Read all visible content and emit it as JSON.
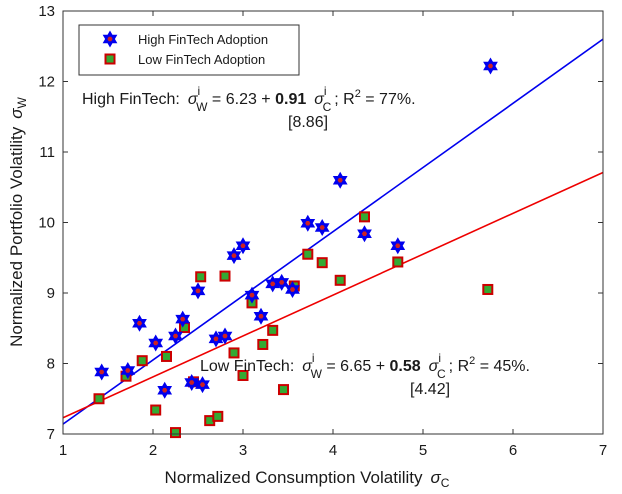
{
  "chart_data": {
    "type": "scatter",
    "title": "",
    "xlabel": "Normalized Consumption Volatility",
    "xlabel_symbol": "σ",
    "xlabel_sub": "C",
    "ylabel": "Normalized Portfolio Volatility",
    "ylabel_symbol": "σ",
    "ylabel_sub": "W",
    "xlim": [
      1,
      7
    ],
    "ylim": [
      7,
      13
    ],
    "xticks": [
      "1",
      "2",
      "3",
      "4",
      "5",
      "6",
      "7"
    ],
    "yticks": [
      "7",
      "8",
      "9",
      "10",
      "11",
      "12",
      "13"
    ],
    "grid": false,
    "legend_position": "top-left",
    "series": [
      {
        "name": "High FinTech Adoption",
        "marker": "hexagram",
        "color": "#0000ee",
        "fill": "#cc2222",
        "points": [
          [
            1.43,
            7.88
          ],
          [
            1.72,
            7.9
          ],
          [
            1.85,
            8.57
          ],
          [
            2.03,
            8.29
          ],
          [
            2.13,
            7.62
          ],
          [
            2.25,
            8.39
          ],
          [
            2.33,
            8.63
          ],
          [
            2.43,
            7.73
          ],
          [
            2.5,
            9.03
          ],
          [
            2.55,
            7.7
          ],
          [
            2.7,
            8.35
          ],
          [
            2.8,
            8.39
          ],
          [
            2.9,
            9.53
          ],
          [
            3.0,
            9.67
          ],
          [
            3.1,
            8.97
          ],
          [
            3.2,
            8.67
          ],
          [
            3.33,
            9.13
          ],
          [
            3.43,
            9.15
          ],
          [
            3.55,
            9.05
          ],
          [
            3.72,
            9.99
          ],
          [
            3.88,
            9.93
          ],
          [
            4.08,
            10.6
          ],
          [
            4.35,
            9.84
          ],
          [
            4.72,
            9.67
          ],
          [
            5.75,
            12.22
          ]
        ]
      },
      {
        "name": "Low FinTech Adoption",
        "marker": "square",
        "color": "#cc0000",
        "fill": "#33aa33",
        "points": [
          [
            1.4,
            7.5
          ],
          [
            1.7,
            7.82
          ],
          [
            1.88,
            8.04
          ],
          [
            2.03,
            7.34
          ],
          [
            2.15,
            8.1
          ],
          [
            2.25,
            7.02
          ],
          [
            2.35,
            8.51
          ],
          [
            2.45,
            7.74
          ],
          [
            2.53,
            9.23
          ],
          [
            2.63,
            7.19
          ],
          [
            2.72,
            7.25
          ],
          [
            2.8,
            9.24
          ],
          [
            2.9,
            8.15
          ],
          [
            3.0,
            7.83
          ],
          [
            3.1,
            8.86
          ],
          [
            3.22,
            8.27
          ],
          [
            3.33,
            8.47
          ],
          [
            3.45,
            7.63
          ],
          [
            3.57,
            9.1
          ],
          [
            3.72,
            9.55
          ],
          [
            3.88,
            9.43
          ],
          [
            4.08,
            9.18
          ],
          [
            4.35,
            10.08
          ],
          [
            4.72,
            9.44
          ],
          [
            5.72,
            9.05
          ]
        ]
      }
    ],
    "fit_lines": [
      {
        "name": "High FinTech fit",
        "color": "#0000ee",
        "intercept": 6.23,
        "slope": 0.91
      },
      {
        "name": "Low FinTech fit",
        "color": "#ee0000",
        "intercept": 6.65,
        "slope": 0.58
      }
    ],
    "annotations": [
      {
        "label": "High FinTech:",
        "sym": "σ",
        "sup": "i",
        "sub_w": "W",
        "eq": " = 6.23 + ",
        "coef": "0.91",
        "sub_c": "C",
        "tail": "; R",
        "r2": "2",
        "r2val": " = 77%.",
        "tstat": "[8.86]"
      },
      {
        "label": "Low FinTech:",
        "sym": "σ",
        "sup": "i",
        "sub_w": "W",
        "eq": " = 6.65 + ",
        "coef": "0.58",
        "sub_c": "C",
        "tail": "; R",
        "r2": "2",
        "r2val": " = 45%.",
        "tstat": "[4.42]"
      }
    ]
  }
}
